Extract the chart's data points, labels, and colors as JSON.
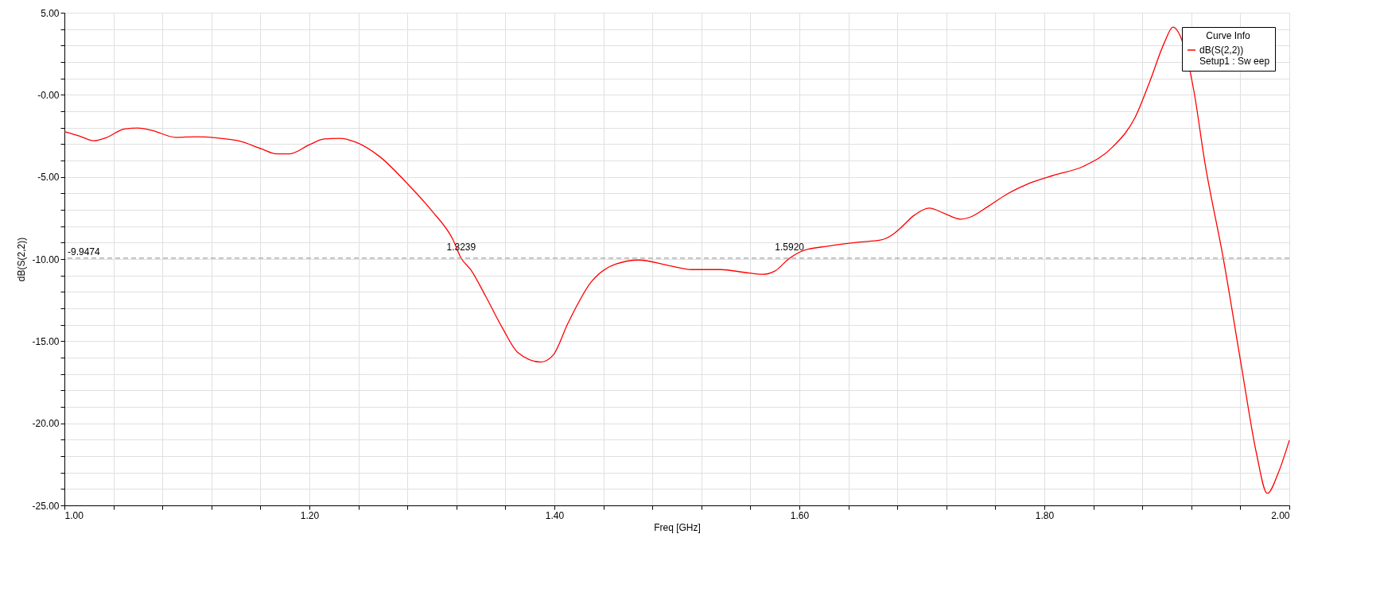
{
  "chart_data": {
    "type": "line",
    "xlabel": "Freq [GHz]",
    "ylabel": "dB(S(2,2))",
    "legend_title": "Curve Info",
    "legend": "top right",
    "grid": true,
    "line_style": "solid",
    "marker": "none",
    "xlim": [
      1.0,
      2.0
    ],
    "ylim": [
      -25,
      5
    ],
    "xticks": [
      {
        "value": 1.0,
        "label": "1.00"
      },
      {
        "value": 1.04,
        "label": null
      },
      {
        "value": 1.08,
        "label": null
      },
      {
        "value": 1.12,
        "label": null
      },
      {
        "value": 1.16,
        "label": null
      },
      {
        "value": 1.2,
        "label": "1.20"
      },
      {
        "value": 1.24,
        "label": null
      },
      {
        "value": 1.28,
        "label": null
      },
      {
        "value": 1.32,
        "label": null
      },
      {
        "value": 1.36,
        "label": null
      },
      {
        "value": 1.4,
        "label": "1.40"
      },
      {
        "value": 1.44,
        "label": null
      },
      {
        "value": 1.48,
        "label": null
      },
      {
        "value": 1.52,
        "label": null
      },
      {
        "value": 1.56,
        "label": null
      },
      {
        "value": 1.6,
        "label": "1.60"
      },
      {
        "value": 1.64,
        "label": null
      },
      {
        "value": 1.68,
        "label": null
      },
      {
        "value": 1.72,
        "label": null
      },
      {
        "value": 1.76,
        "label": null
      },
      {
        "value": 1.8,
        "label": "1.80"
      },
      {
        "value": 1.84,
        "label": null
      },
      {
        "value": 1.88,
        "label": null
      },
      {
        "value": 1.92,
        "label": null
      },
      {
        "value": 1.96,
        "label": null
      },
      {
        "value": 2.0,
        "label": "2.00"
      }
    ],
    "yticks": [
      {
        "value": -25,
        "label": "-25.00"
      },
      {
        "value": -24,
        "label": null
      },
      {
        "value": -23,
        "label": null
      },
      {
        "value": -22,
        "label": null
      },
      {
        "value": -21,
        "label": null
      },
      {
        "value": -20,
        "label": "-20.00"
      },
      {
        "value": -19,
        "label": null
      },
      {
        "value": -18,
        "label": null
      },
      {
        "value": -17,
        "label": null
      },
      {
        "value": -16,
        "label": null
      },
      {
        "value": -15,
        "label": "-15.00"
      },
      {
        "value": -14,
        "label": null
      },
      {
        "value": -13,
        "label": null
      },
      {
        "value": -12,
        "label": null
      },
      {
        "value": -11,
        "label": null
      },
      {
        "value": -10,
        "label": "-10.00"
      },
      {
        "value": -9,
        "label": null
      },
      {
        "value": -8,
        "label": null
      },
      {
        "value": -7,
        "label": null
      },
      {
        "value": -6,
        "label": null
      },
      {
        "value": -5,
        "label": "-5.00"
      },
      {
        "value": -4,
        "label": null
      },
      {
        "value": -3,
        "label": null
      },
      {
        "value": -2,
        "label": null
      },
      {
        "value": -1,
        "label": null
      },
      {
        "value": 0,
        "label": "-0.00"
      },
      {
        "value": 1,
        "label": null
      },
      {
        "value": 2,
        "label": null
      },
      {
        "value": 3,
        "label": null
      },
      {
        "value": 4,
        "label": null
      },
      {
        "value": 5,
        "label": "5.00"
      }
    ],
    "ref_lines": [
      {
        "axis": "y",
        "value": -9.9474,
        "label": "-9.9474",
        "color": "#a0a0a0",
        "line_style": "dashed"
      }
    ],
    "annotations": [
      {
        "text": "1.3239",
        "x": 1.3239,
        "y": -9.9474
      },
      {
        "text": "1.5920",
        "x": 1.592,
        "y": -9.9474
      }
    ],
    "series": [
      {
        "name": "dB(S(2,2))\nSetup1 : Sw eep",
        "color": "#ff0000",
        "x": [
          1.0,
          1.013,
          1.024,
          1.034,
          1.049,
          1.06,
          1.072,
          1.091,
          1.108,
          1.125,
          1.142,
          1.161,
          1.173,
          1.184,
          1.2,
          1.212,
          1.225,
          1.237,
          1.257,
          1.28,
          1.3,
          1.317,
          1.3239,
          1.3316,
          1.3437,
          1.358,
          1.37,
          1.389,
          1.399,
          1.411,
          1.43,
          1.45,
          1.469,
          1.493,
          1.512,
          1.536,
          1.555,
          1.57,
          1.58,
          1.592,
          1.6036,
          1.623,
          1.649,
          1.666,
          1.677,
          1.682,
          1.694,
          1.706,
          1.718,
          1.7316,
          1.739,
          1.754,
          1.769,
          1.787,
          1.808,
          1.832,
          1.856,
          1.874,
          1.886,
          1.898,
          1.905,
          1.913,
          1.922,
          1.931,
          1.946,
          1.961,
          1.973,
          1.982,
          1.991,
          2.0
        ],
        "values": [
          -2.24,
          -2.53,
          -2.8,
          -2.61,
          -2.08,
          -2.02,
          -2.18,
          -2.59,
          -2.55,
          -2.63,
          -2.8,
          -3.29,
          -3.59,
          -3.59,
          -3.04,
          -2.69,
          -2.65,
          -2.86,
          -3.74,
          -5.41,
          -7.07,
          -8.79,
          -9.95,
          -10.64,
          -12.24,
          -14.25,
          -15.68,
          -16.27,
          -15.85,
          -13.92,
          -11.4,
          -10.31,
          -10.06,
          -10.39,
          -10.64,
          -10.64,
          -10.81,
          -10.93,
          -10.73,
          -9.95,
          -9.47,
          -9.22,
          -8.97,
          -8.85,
          -8.46,
          -8.15,
          -7.32,
          -6.9,
          -7.21,
          -7.57,
          -7.46,
          -6.8,
          -6.07,
          -5.41,
          -4.89,
          -4.35,
          -3.16,
          -1.39,
          0.79,
          3.18,
          4.12,
          3.18,
          0.27,
          -4.1,
          -9.92,
          -16.57,
          -21.77,
          -24.27,
          -23.02,
          -21.04
        ]
      }
    ]
  }
}
